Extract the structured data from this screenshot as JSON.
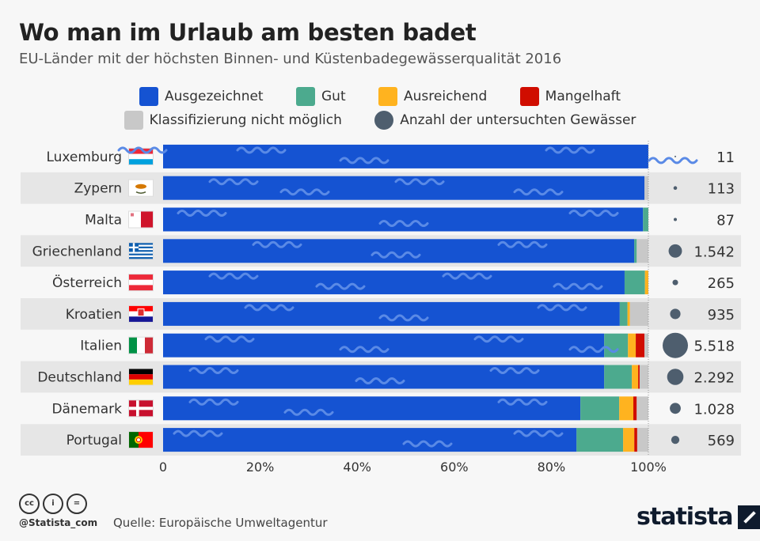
{
  "title": "Wo man im Urlaub am besten badet",
  "subtitle": "EU-Länder mit der höchsten Binnen- und Küstenbadegewässerqualität 2016",
  "legend": {
    "row1": [
      {
        "label": "Ausgezeichnet",
        "color": "#1553d2"
      },
      {
        "label": "Gut",
        "color": "#4caa8e"
      },
      {
        "label": "Ausreichend",
        "color": "#ffb31f"
      },
      {
        "label": "Mangelhaft",
        "color": "#d00d00"
      }
    ],
    "row2": [
      {
        "label": "Klassifizierung nicht möglich",
        "color": "#c8c8c8"
      },
      {
        "label": "Anzahl der untersuchten Gewässer",
        "color": "#4e5e6e"
      }
    ]
  },
  "footer": {
    "handle": "@Statista_com",
    "source": "Quelle: Europäische Umweltagentur",
    "logo": "statista",
    "license_icons": [
      "cc",
      "i",
      "="
    ]
  },
  "chart_data": {
    "type": "bar",
    "orientation": "horizontal",
    "stacked": true,
    "title": "Wo man im Urlaub am besten badet",
    "subtitle": "EU-Länder mit der höchsten Binnen- und Küstenbadegewässerqualität 2016",
    "xlabel": "",
    "ylabel": "",
    "xlim": [
      0,
      100
    ],
    "x_ticks": [
      "0",
      "20%",
      "40%",
      "60%",
      "80%",
      "100%"
    ],
    "x_tick_values": [
      0,
      20,
      40,
      60,
      80,
      100
    ],
    "categories": [
      "Luxemburg",
      "Zypern",
      "Malta",
      "Griechenland",
      "Österreich",
      "Kroatien",
      "Italien",
      "Deutschland",
      "Dänemark",
      "Portugal"
    ],
    "flags": [
      "luxembourg",
      "cyprus",
      "malta",
      "greece",
      "austria",
      "croatia",
      "italy",
      "germany",
      "denmark",
      "portugal"
    ],
    "series": [
      {
        "name": "Ausgezeichnet",
        "color": "#1553d2",
        "values": [
          100,
          99.2,
          98.9,
          97.1,
          95.1,
          94.1,
          90.9,
          90.9,
          86.0,
          85.2
        ]
      },
      {
        "name": "Gut",
        "color": "#4caa8e",
        "values": [
          0,
          0,
          1.1,
          0.5,
          4.2,
          1.6,
          4.9,
          5.7,
          8.0,
          9.6
        ]
      },
      {
        "name": "Ausreichend",
        "color": "#ffb31f",
        "values": [
          0,
          0,
          0,
          0,
          0.7,
          0.5,
          1.6,
          1.3,
          2.9,
          2.3
        ]
      },
      {
        "name": "Mangelhaft",
        "color": "#d00d00",
        "values": [
          0,
          0,
          0,
          0,
          0,
          0,
          1.8,
          0.3,
          0.7,
          0.6
        ]
      },
      {
        "name": "Klassifizierung nicht möglich",
        "color": "#c8c8c8",
        "values": [
          0,
          0.8,
          0,
          2.4,
          0,
          3.8,
          0.8,
          1.8,
          2.4,
          2.3
        ]
      }
    ],
    "counts": {
      "name": "Anzahl der untersuchten Gewässer",
      "color": "#4e5e6e",
      "values": [
        11,
        113,
        87,
        1542,
        265,
        935,
        5518,
        2292,
        1028,
        569
      ],
      "labels": [
        "11",
        "113",
        "87",
        "1.542",
        "265",
        "935",
        "5.518",
        "2.292",
        "1.028",
        "569"
      ]
    },
    "grid": false,
    "legend_position": "top"
  }
}
